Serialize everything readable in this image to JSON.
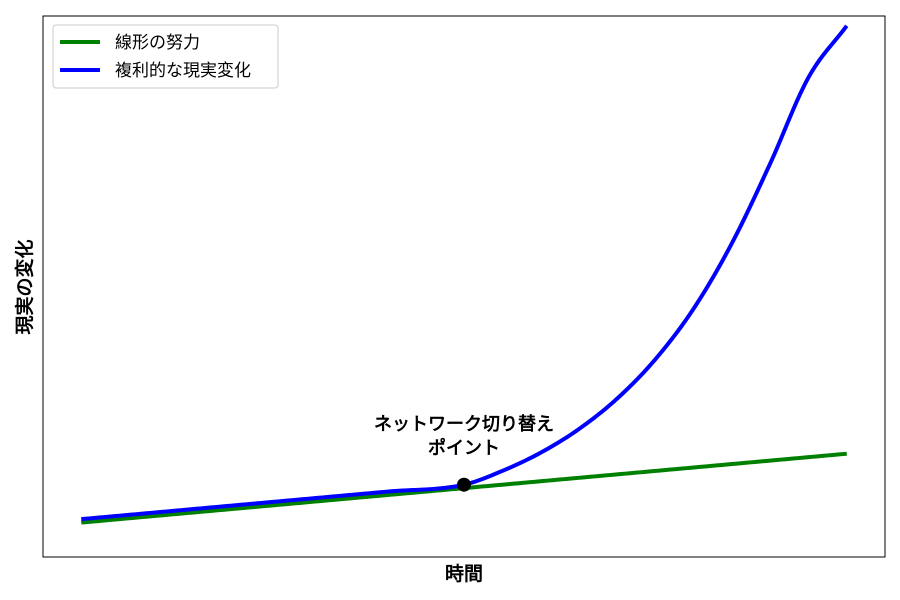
{
  "chart_data": {
    "type": "line",
    "title": "",
    "xlabel": "時間",
    "ylabel": "現実の変化",
    "xlim": [
      -0.5,
      10.5
    ],
    "ylim": [
      -0.5,
      10.5
    ],
    "ticks_visible": false,
    "grid": false,
    "legend_position": "top-left",
    "series": [
      {
        "name": "線形の努力",
        "color": "#008000",
        "x": [
          0,
          10
        ],
        "y": [
          0.2,
          1.6
        ]
      },
      {
        "name": "複利的な現実変化",
        "color": "#0000ff",
        "x": [
          0,
          1,
          2,
          3,
          4,
          5,
          5.5,
          6,
          6.5,
          7,
          7.5,
          8,
          8.5,
          9,
          9.5,
          10
        ],
        "y": [
          0.27,
          0.41,
          0.55,
          0.69,
          0.83,
          0.97,
          1.25,
          1.62,
          2.1,
          2.72,
          3.52,
          4.55,
          5.88,
          7.5,
          9.25,
          10.3
        ]
      }
    ],
    "annotations": [
      {
        "text_lines": [
          "ネットワーク切り替え",
          "ポイント"
        ],
        "point": {
          "x": 5,
          "y": 0.97
        },
        "marker_color": "#000000"
      }
    ]
  }
}
